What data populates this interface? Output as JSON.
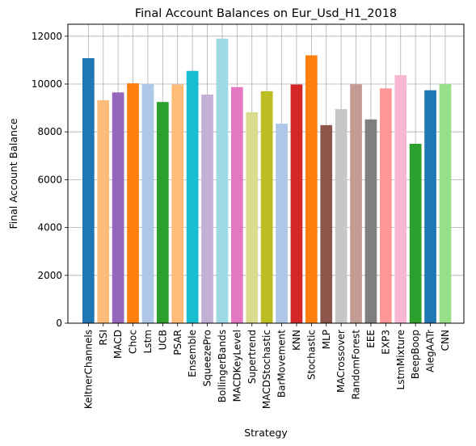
{
  "chart_data": {
    "type": "bar",
    "title": "Final Account Balances on Eur_Usd_H1_2018",
    "xlabel": "Strategy",
    "ylabel": "Final Account Balance",
    "ylim": [
      0,
      12500
    ],
    "yticks": [
      0,
      2000,
      4000,
      6000,
      8000,
      10000,
      12000
    ],
    "grid": true,
    "categories": [
      "KeltnerChannels",
      "RSI",
      "MACD",
      "Choc",
      "Lstm",
      "UCB",
      "PSAR",
      "Ensemble",
      "SqueezePro",
      "BollingerBands",
      "MACDKeyLevel",
      "Supertrend",
      "MACDStochastic",
      "BarMovement",
      "KNN",
      "Stochastic",
      "MLP",
      "MACrossover",
      "RandomForest",
      "EEE",
      "EXP3",
      "LstmMixture",
      "BeepBoop",
      "AlegAATr",
      "CNN"
    ],
    "values": [
      11080,
      9320,
      9650,
      10030,
      10000,
      9250,
      9980,
      10550,
      9560,
      11900,
      9870,
      8820,
      9700,
      8340,
      9980,
      11200,
      8280,
      8950,
      9990,
      8520,
      9820,
      10370,
      7500,
      9740,
      10000
    ],
    "colors": [
      "#1f77b4",
      "#ffbb78",
      "#9467bd",
      "#ff7f0e",
      "#aec7e8",
      "#2ca02c",
      "#ffbb78",
      "#17becf",
      "#c5b0d5",
      "#9edae5",
      "#e377c2",
      "#dbdb8d",
      "#bcbd22",
      "#aec7e8",
      "#d62728",
      "#ff7f0e",
      "#8c564b",
      "#c7c7c7",
      "#c49c94",
      "#7f7f7f",
      "#ff9896",
      "#f7b6d2",
      "#2ca02c",
      "#1f77b4",
      "#98df8a"
    ]
  }
}
